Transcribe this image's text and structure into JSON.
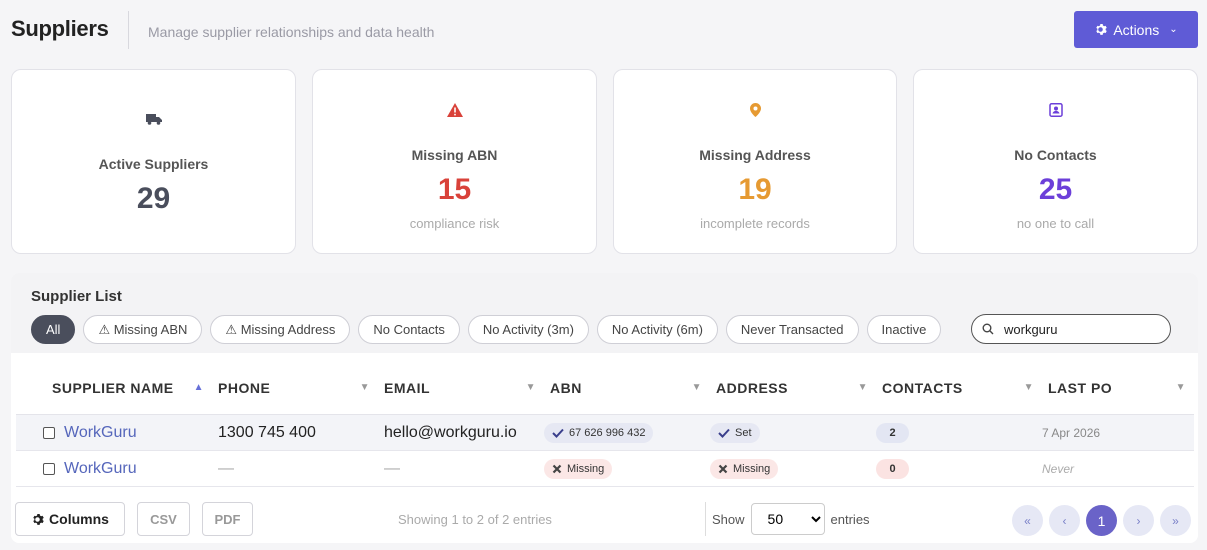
{
  "header": {
    "title": "Suppliers",
    "subtitle": "Manage supplier relationships and data health",
    "actions_label": "Actions"
  },
  "cards": [
    {
      "label": "Active Suppliers",
      "value": "29",
      "caption": "",
      "icon": "truck-icon",
      "color": "#4a4e5c",
      "bg": "#ececf3"
    },
    {
      "label": "Missing ABN",
      "value": "15",
      "caption": "compliance risk",
      "icon": "warning-icon",
      "color": "#d9423a",
      "bg": "#fbe5e3"
    },
    {
      "label": "Missing Address",
      "value": "19",
      "caption": "incomplete records",
      "icon": "location-pin-icon",
      "color": "#e69a32",
      "bg": "#fcefdc"
    },
    {
      "label": "No Contacts",
      "value": "25",
      "caption": "no one to call",
      "icon": "contact-book-icon",
      "color": "#6c3fd9",
      "bg": "#ece6fa"
    }
  ],
  "supplier_list": {
    "title": "Supplier List",
    "filters": [
      "All",
      "⚠ Missing ABN",
      "⚠ Missing Address",
      "No Contacts",
      "No Activity (3m)",
      "No Activity (6m)",
      "Never Transacted",
      "Inactive"
    ],
    "active_filter": "All",
    "search_value": "workguru",
    "columns": [
      "SUPPLIER NAME",
      "PHONE",
      "EMAIL",
      "ABN",
      "ADDRESS",
      "CONTACTS",
      "LAST PO"
    ],
    "rows": [
      {
        "name": "WorkGuru",
        "phone": "1300 745 400",
        "email": "hello@workguru.io",
        "abn": "67 626 996 432",
        "abn_ok": true,
        "address": "Set",
        "address_ok": true,
        "contacts": "2",
        "last_po": "7 Apr 2026"
      },
      {
        "name": "WorkGuru",
        "phone": "—",
        "email": "—",
        "abn": "Missing",
        "abn_ok": false,
        "address": "Missing",
        "address_ok": false,
        "contacts": "0",
        "last_po": "Never"
      }
    ]
  },
  "footer": {
    "columns_label": "Columns",
    "csv_label": "CSV",
    "pdf_label": "PDF",
    "showing_text": "Showing 1 to 2 of 2 entries",
    "show_label": "Show",
    "entries_label": "entries",
    "page_size": "50",
    "current_page": "1"
  }
}
